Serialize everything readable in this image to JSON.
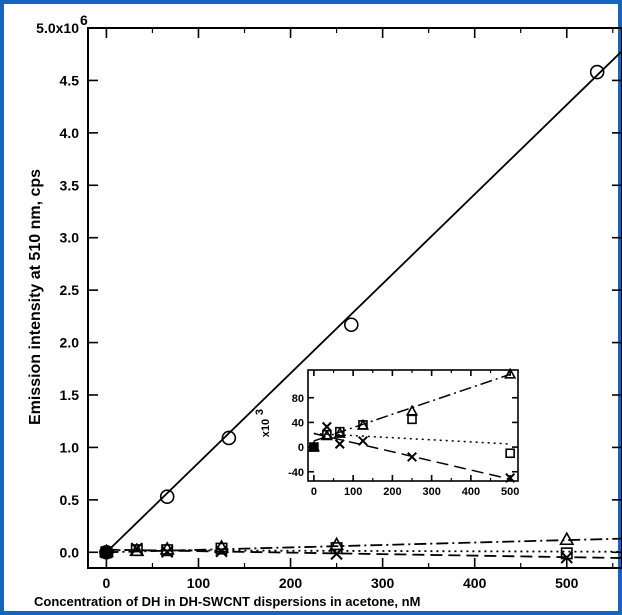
{
  "chart_data": [
    {
      "type": "scatter",
      "xlabel": "Concentration of DH in DH-SWCNT dispersions in acetone, nM",
      "ylabel": "Emission intensity at 510 nm, cps",
      "xlim": [
        -20,
        560
      ],
      "ylim": [
        -0.15,
        5.0
      ],
      "x_ticks": [
        "0",
        "100",
        "200",
        "300",
        "400",
        "500"
      ],
      "y_ticks": [
        "0.0",
        "0.5",
        "1.0",
        "1.5",
        "2.0",
        "2.5",
        "3.0",
        "3.5",
        "4.0",
        "4.5",
        "5.0x10"
      ],
      "y_tick_top_exponent": "6",
      "y_unit_multiplier": 1000000,
      "series": [
        {
          "marker": "circle",
          "line": "solid",
          "x": [
            0,
            66,
            133,
            266,
            533
          ],
          "y": [
            0.0,
            0.53,
            1.09,
            2.17,
            4.58
          ],
          "fit": [
            [
              0,
              0.0
            ],
            [
              560,
              4.78
            ]
          ]
        },
        {
          "marker": "triangle",
          "line": "dash-dot",
          "x": [
            0,
            33,
            66,
            125,
            250,
            500
          ],
          "y": [
            0.005,
            0.015,
            0.028,
            0.045,
            0.07,
            0.12
          ],
          "fit": [
            [
              0,
              0.0
            ],
            [
              560,
              0.13
            ]
          ]
        },
        {
          "marker": "square",
          "line": "dash-dot",
          "x": [
            0,
            33,
            66,
            125,
            250,
            500
          ],
          "y": [
            0.0,
            0.02,
            0.02,
            0.035,
            0.04,
            -0.01
          ]
        },
        {
          "marker": "x",
          "line": "dotted",
          "x": [
            0,
            33,
            66,
            125,
            250,
            500
          ],
          "y": [
            0.0,
            0.035,
            0.005,
            0.01,
            -0.015,
            -0.05
          ],
          "fit": [
            [
              0,
              0.02
            ],
            [
              560,
              0.005
            ]
          ]
        },
        {
          "marker": "filled-square",
          "line": "none",
          "x": [
            0
          ],
          "y": [
            0.0
          ]
        },
        {
          "marker": "none",
          "line": "dashed",
          "fit": [
            [
              0,
              0.025
            ],
            [
              560,
              -0.055
            ]
          ]
        }
      ]
    },
    {
      "type": "scatter",
      "inset": true,
      "xlim": [
        -15,
        520
      ],
      "ylim": [
        -55,
        125
      ],
      "x_ticks": [
        "0",
        "100",
        "200",
        "300",
        "400",
        "500"
      ],
      "y_ticks": [
        "-40",
        "0",
        "40",
        "80"
      ],
      "ylabel": "x10",
      "ylabel_exponent": "3",
      "series": [
        {
          "marker": "triangle",
          "line": "dash-dot",
          "x": [
            0,
            33,
            66,
            125,
            250,
            500
          ],
          "y": [
            0,
            18,
            22,
            35,
            58,
            118
          ],
          "fit": [
            [
              0,
              10
            ],
            [
              500,
              118
            ]
          ]
        },
        {
          "marker": "square",
          "line": "none",
          "x": [
            0,
            33,
            66,
            125,
            250,
            500
          ],
          "y": [
            0,
            20,
            25,
            36,
            45,
            -10
          ]
        },
        {
          "marker": "x",
          "line": "dashed",
          "x": [
            0,
            33,
            66,
            125,
            250,
            500
          ],
          "y": [
            0,
            33,
            5,
            10,
            -16,
            -50
          ],
          "fit": [
            [
              0,
              22
            ],
            [
              500,
              -52
            ]
          ]
        },
        {
          "marker": "filled-square",
          "line": "none",
          "x": [
            0
          ],
          "y": [
            0
          ]
        },
        {
          "marker": "none",
          "line": "dotted",
          "fit": [
            [
              0,
              22
            ],
            [
              500,
              5
            ]
          ]
        }
      ]
    }
  ]
}
